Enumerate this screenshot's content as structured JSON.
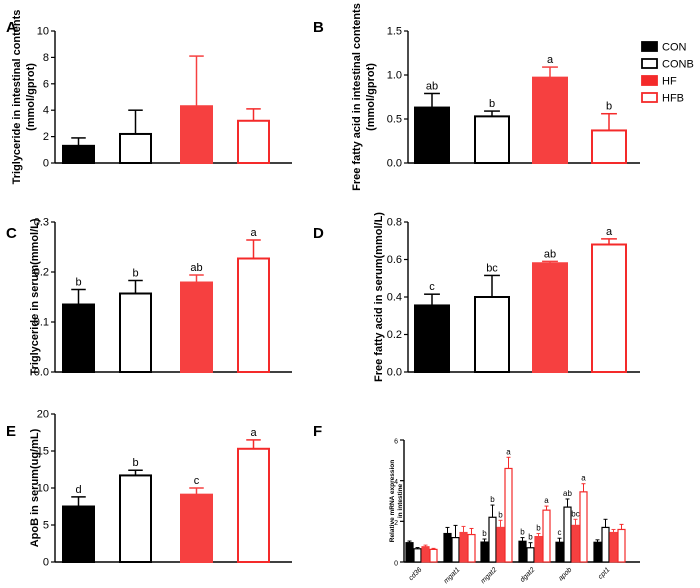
{
  "legend": {
    "items": [
      {
        "label": "CON",
        "fill": "#000000",
        "stroke": "#000000"
      },
      {
        "label": "CONB",
        "fill": "#ffffff",
        "stroke": "#000000"
      },
      {
        "label": "HF",
        "fill": "#f42a2a",
        "stroke": "#f42a2a"
      },
      {
        "label": "HFB",
        "fill": "#ffffff",
        "stroke": "#f42a2a"
      }
    ]
  },
  "colors": {
    "CON": "#000000",
    "CONB": "#ffffff",
    "HF": "#f64040",
    "HFB": "#ffffff",
    "red": "#f42a2a"
  },
  "chart_data": [
    {
      "panel": "A",
      "type": "bar",
      "ylabel": "Triglyceride in intestinal contents (mmol/gprot)",
      "ylabel_lines": [
        "Triglyceride in intestinal contents",
        "(mmol/gprot)"
      ],
      "ylim": [
        0,
        10
      ],
      "yticks": [
        "0",
        "2",
        "4",
        "6",
        "8",
        "10"
      ],
      "ytick_values": [
        0,
        2,
        4,
        6,
        8,
        10
      ],
      "categories": [
        "CON",
        "CONB",
        "HF",
        "HFB"
      ],
      "values": [
        1.3,
        2.2,
        4.3,
        3.2
      ],
      "errors": [
        0.6,
        1.8,
        3.8,
        0.9
      ],
      "letters": [
        "",
        "",
        "",
        ""
      ]
    },
    {
      "panel": "B",
      "type": "bar",
      "ylabel": "Free fatty acid in intestinal contents (mmol/gprot)",
      "ylabel_lines": [
        "Free fatty acid in intestinal contents",
        "(mmol/gprot)"
      ],
      "ylim": [
        0,
        1.5
      ],
      "yticks": [
        "0.0",
        "0.5",
        "1.0",
        "1.5"
      ],
      "ytick_values": [
        0,
        0.5,
        1.0,
        1.5
      ],
      "categories": [
        "CON",
        "CONB",
        "HF",
        "HFB"
      ],
      "values": [
        0.63,
        0.53,
        0.97,
        0.37
      ],
      "errors": [
        0.16,
        0.06,
        0.12,
        0.19
      ],
      "letters": [
        "ab",
        "b",
        "a",
        "b"
      ]
    },
    {
      "panel": "C",
      "type": "bar",
      "ylabel": "Triglyceride in serum(mmol/L)",
      "ylabel_lines": [
        "Triglyceride in serum(mmol/L)"
      ],
      "ylim": [
        0,
        0.3
      ],
      "yticks": [
        "0.0",
        "0.1",
        "0.2",
        "0.3"
      ],
      "ytick_values": [
        0,
        0.1,
        0.2,
        0.3
      ],
      "categories": [
        "CON",
        "CONB",
        "HF",
        "HFB"
      ],
      "values": [
        0.135,
        0.157,
        0.179,
        0.227
      ],
      "errors": [
        0.03,
        0.026,
        0.015,
        0.037
      ],
      "letters": [
        "b",
        "b",
        "ab",
        "a"
      ]
    },
    {
      "panel": "D",
      "type": "bar",
      "ylabel": "Free fatty acid in serum(mmol/L)",
      "ylabel_lines": [
        "Free fatty acid in serum(mmol/L)"
      ],
      "ylim": [
        0,
        0.8
      ],
      "yticks": [
        "0.0",
        "0.2",
        "0.4",
        "0.6",
        "0.8"
      ],
      "ytick_values": [
        0,
        0.2,
        0.4,
        0.6,
        0.8
      ],
      "categories": [
        "CON",
        "CONB",
        "HF",
        "HFB"
      ],
      "values": [
        0.355,
        0.4,
        0.58,
        0.68
      ],
      "errors": [
        0.06,
        0.115,
        0.01,
        0.03
      ],
      "letters": [
        "c",
        "bc",
        "ab",
        "a"
      ]
    },
    {
      "panel": "E",
      "type": "bar",
      "ylabel": "ApoB in serum(ug/mL)",
      "ylabel_lines": [
        "ApoB in serum(ug/mL)"
      ],
      "ylim": [
        0,
        20
      ],
      "yticks": [
        "0",
        "5",
        "10",
        "15",
        "20"
      ],
      "ytick_values": [
        0,
        5,
        10,
        15,
        20
      ],
      "categories": [
        "CON",
        "CONB",
        "HF",
        "HFB"
      ],
      "values": [
        7.5,
        11.7,
        9.1,
        15.3
      ],
      "errors": [
        1.3,
        0.7,
        0.9,
        1.2
      ],
      "letters": [
        "d",
        "b",
        "c",
        "a"
      ]
    },
    {
      "panel": "F",
      "type": "bar",
      "ylabel": "Relative mRNA expression in intestine",
      "ylabel_lines": [
        "Relative mRNA expression",
        "in intestine"
      ],
      "ylim": [
        0,
        6
      ],
      "yticks": [
        "0",
        "2",
        "4",
        "6"
      ],
      "ytick_values": [
        0,
        2,
        4,
        6
      ],
      "categories": [
        "cd36",
        "mgat1",
        "mgat2",
        "dgat2",
        "apob",
        "cpt1"
      ],
      "series": [
        {
          "name": "CON",
          "values": [
            0.95,
            1.4,
            0.98,
            1.02,
            0.97,
            0.97
          ],
          "errors": [
            0.08,
            0.3,
            0.15,
            0.18,
            0.2,
            0.12
          ]
        },
        {
          "name": "CONB",
          "values": [
            0.65,
            1.2,
            2.2,
            0.7,
            2.7,
            1.7
          ],
          "errors": [
            0.06,
            0.6,
            0.6,
            0.25,
            0.4,
            0.4
          ]
        },
        {
          "name": "HF",
          "values": [
            0.75,
            1.45,
            1.7,
            1.25,
            1.8,
            1.45
          ],
          "errors": [
            0.08,
            0.3,
            0.35,
            0.15,
            0.3,
            0.15
          ]
        },
        {
          "name": "HFB",
          "values": [
            0.62,
            1.35,
            4.6,
            2.55,
            3.45,
            1.6
          ],
          "errors": [
            0.05,
            0.3,
            0.55,
            0.2,
            0.4,
            0.25
          ]
        }
      ],
      "letters": [
        [
          "",
          "",
          "",
          ""
        ],
        [
          "",
          "",
          "",
          ""
        ],
        [
          "b",
          "b",
          "b",
          "a"
        ],
        [
          "b",
          "b",
          "b",
          "a"
        ],
        [
          "c",
          "ab",
          "bc",
          "a"
        ],
        [
          "",
          "",
          "",
          ""
        ]
      ]
    }
  ]
}
